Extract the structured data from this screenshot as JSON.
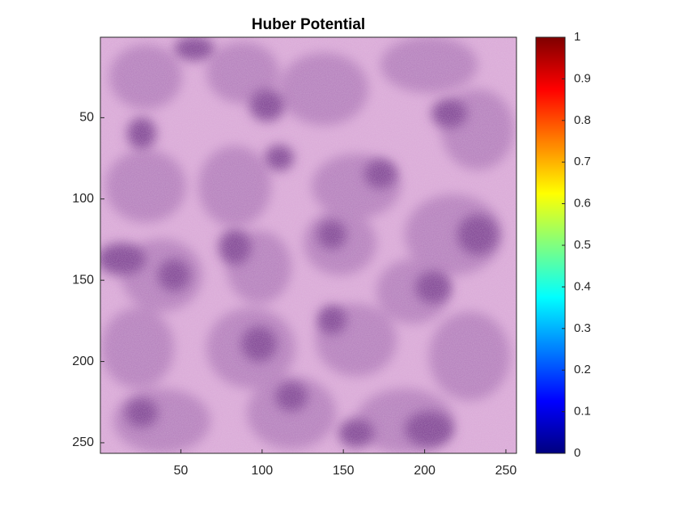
{
  "chart_data": {
    "type": "image",
    "title": "Huber Potential",
    "xlim": [
      0.5,
      256.5
    ],
    "ylim": [
      256.5,
      0.5
    ],
    "xticks": [
      50,
      100,
      150,
      200,
      250
    ],
    "yticks": [
      50,
      100,
      150,
      200,
      250
    ],
    "colorbar": {
      "colormap": "jet",
      "clim": [
        0,
        1
      ],
      "ticks": [
        0,
        0.1,
        0.2,
        0.3,
        0.4,
        0.5,
        0.6,
        0.7,
        0.8,
        0.9,
        1
      ]
    }
  }
}
